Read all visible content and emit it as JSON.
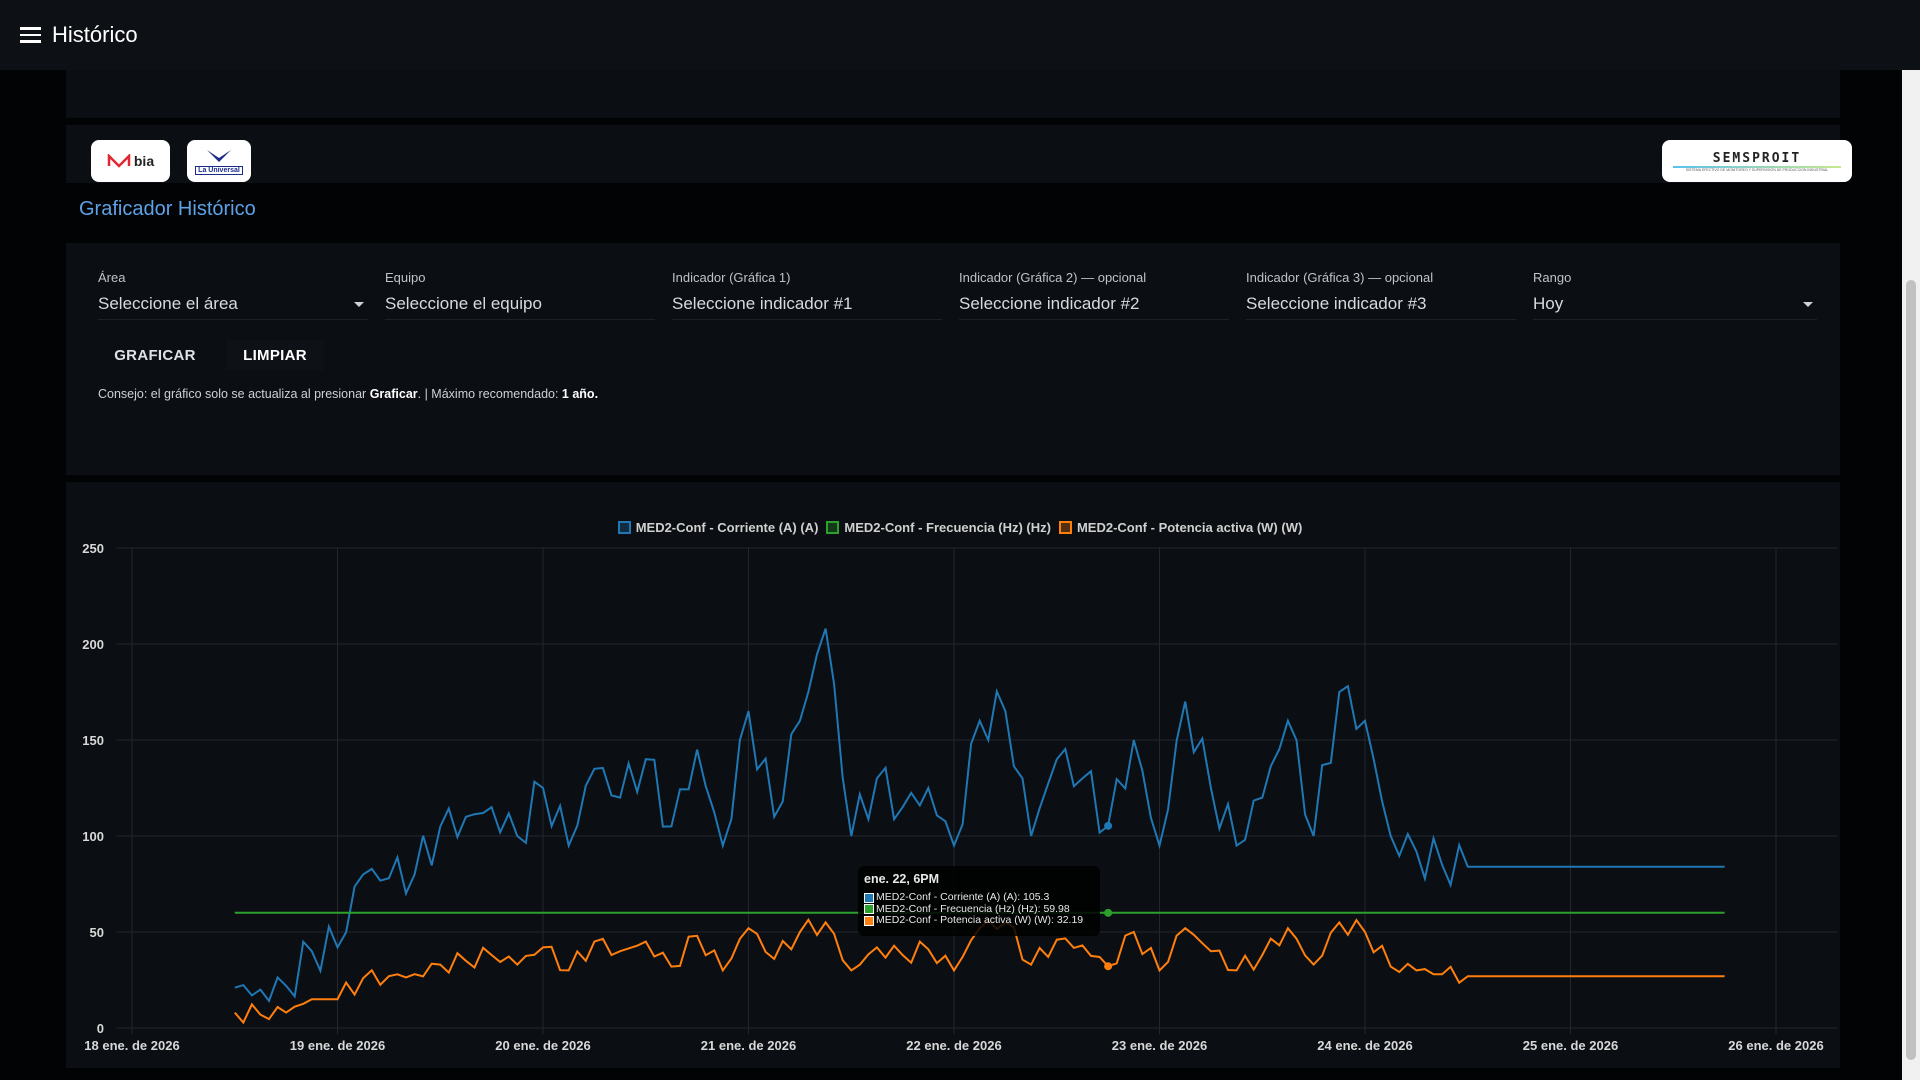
{
  "topbar": {
    "title": "Histórico",
    "menu_icon": "hamburger-icon"
  },
  "logos": {
    "bia": "bia",
    "universal": "La Universal",
    "semsproit": "SEMSPROIT",
    "semsproit_sub": "SISTEMA EFECTIVO DE MONITOREO Y SUPERVISIÓN DE PRODUCCIÓN INDUSTRIAL"
  },
  "page_title": "Graficador Histórico",
  "filters": [
    {
      "label": "Área",
      "value": "Seleccione el área",
      "caret": true
    },
    {
      "label": "Equipo",
      "value": "Seleccione el equipo",
      "caret": false
    },
    {
      "label": "Indicador (Gráfica 1)",
      "value": "Seleccione indicador #1",
      "caret": false
    },
    {
      "label": "Indicador (Gráfica 2) — opcional",
      "value": "Seleccione indicador #2",
      "caret": false
    },
    {
      "label": "Indicador (Gráfica 3) — opcional",
      "value": "Seleccione indicador #3",
      "caret": false
    },
    {
      "label": "Rango",
      "value": "Hoy",
      "caret": true
    }
  ],
  "buttons": {
    "graficar": "GRAFICAR",
    "limpiar": "LIMPIAR"
  },
  "tip": {
    "t1": "Consejo: el gráfico solo se actualiza al presionar ",
    "b1": "Graficar",
    "t2": ". | Máximo recomendado: ",
    "b2": "1 año."
  },
  "tooltip": {
    "title": "ene. 22, 6PM",
    "rows": [
      "MED2-Conf - Corriente (A) (A): 105.3",
      "MED2-Conf - Frecuencia (Hz) (Hz): 59.98",
      "MED2-Conf - Potencia activa (W) (W): 32.19"
    ]
  },
  "chart_data": {
    "type": "line",
    "ylim": [
      0,
      250
    ],
    "yticks": [
      0,
      50,
      100,
      150,
      200,
      250
    ],
    "xticks": [
      "18 ene. de 2026",
      "19 ene. de 2026",
      "20 ene. de 2026",
      "21 ene. de 2026",
      "22 ene. de 2026",
      "23 ene. de 2026",
      "24 ene. de 2026",
      "25 ene. de 2026",
      "26 ene. de 2026"
    ],
    "x_start": "2026-01-18T12:00",
    "step_hours": 3,
    "series": [
      {
        "name": "MED2-Conf - Corriente (A) (A)",
        "color": "#1f77b4",
        "values": [
          21,
          20,
          22,
          40,
          42,
          80,
          78,
          80,
          105,
          110,
          115,
          100,
          125,
          95,
          135,
          120,
          140,
          105,
          145,
          95,
          165,
          110,
          160,
          208,
          100,
          130,
          115,
          125,
          95,
          160,
          165,
          100,
          140,
          130,
          105.3,
          150,
          95,
          170,
          125,
          95,
          120,
          160,
          100,
          175,
          160,
          100,
          92,
          85,
          84,
          84,
          84,
          84,
          84,
          84,
          84,
          84,
          84,
          84,
          84
        ]
      },
      {
        "name": "MED2-Conf - Frecuencia (Hz) (Hz)",
        "color": "#2ca02c",
        "values": [
          60,
          60,
          60,
          60,
          60,
          60,
          60,
          60,
          60,
          60,
          60,
          60,
          60,
          60,
          60,
          60,
          60,
          60,
          60,
          60,
          60,
          60,
          60,
          60,
          60,
          60,
          60,
          60,
          60,
          60,
          60,
          60,
          60,
          60,
          59.98,
          60,
          60,
          60,
          60,
          60,
          60,
          60,
          60,
          60,
          60,
          60,
          60,
          60,
          60,
          60,
          60,
          60,
          60,
          60,
          60,
          60,
          60,
          60,
          60
        ]
      },
      {
        "name": "MED2-Conf - Potencia activa (W) (W)",
        "color": "#ff7f0e",
        "values": [
          8,
          7,
          8,
          15,
          15,
          26,
          27,
          28,
          33,
          35,
          38,
          33,
          42,
          30,
          45,
          40,
          45,
          32,
          48,
          30,
          52,
          36,
          50,
          55,
          30,
          42,
          38,
          41,
          30,
          52,
          55,
          33,
          46,
          43,
          32.19,
          50,
          30,
          52,
          40,
          30,
          38,
          52,
          33,
          55,
          50,
          32,
          30,
          28,
          27,
          27,
          27,
          27,
          27,
          27,
          27,
          27,
          27,
          27,
          27
        ]
      }
    ]
  }
}
